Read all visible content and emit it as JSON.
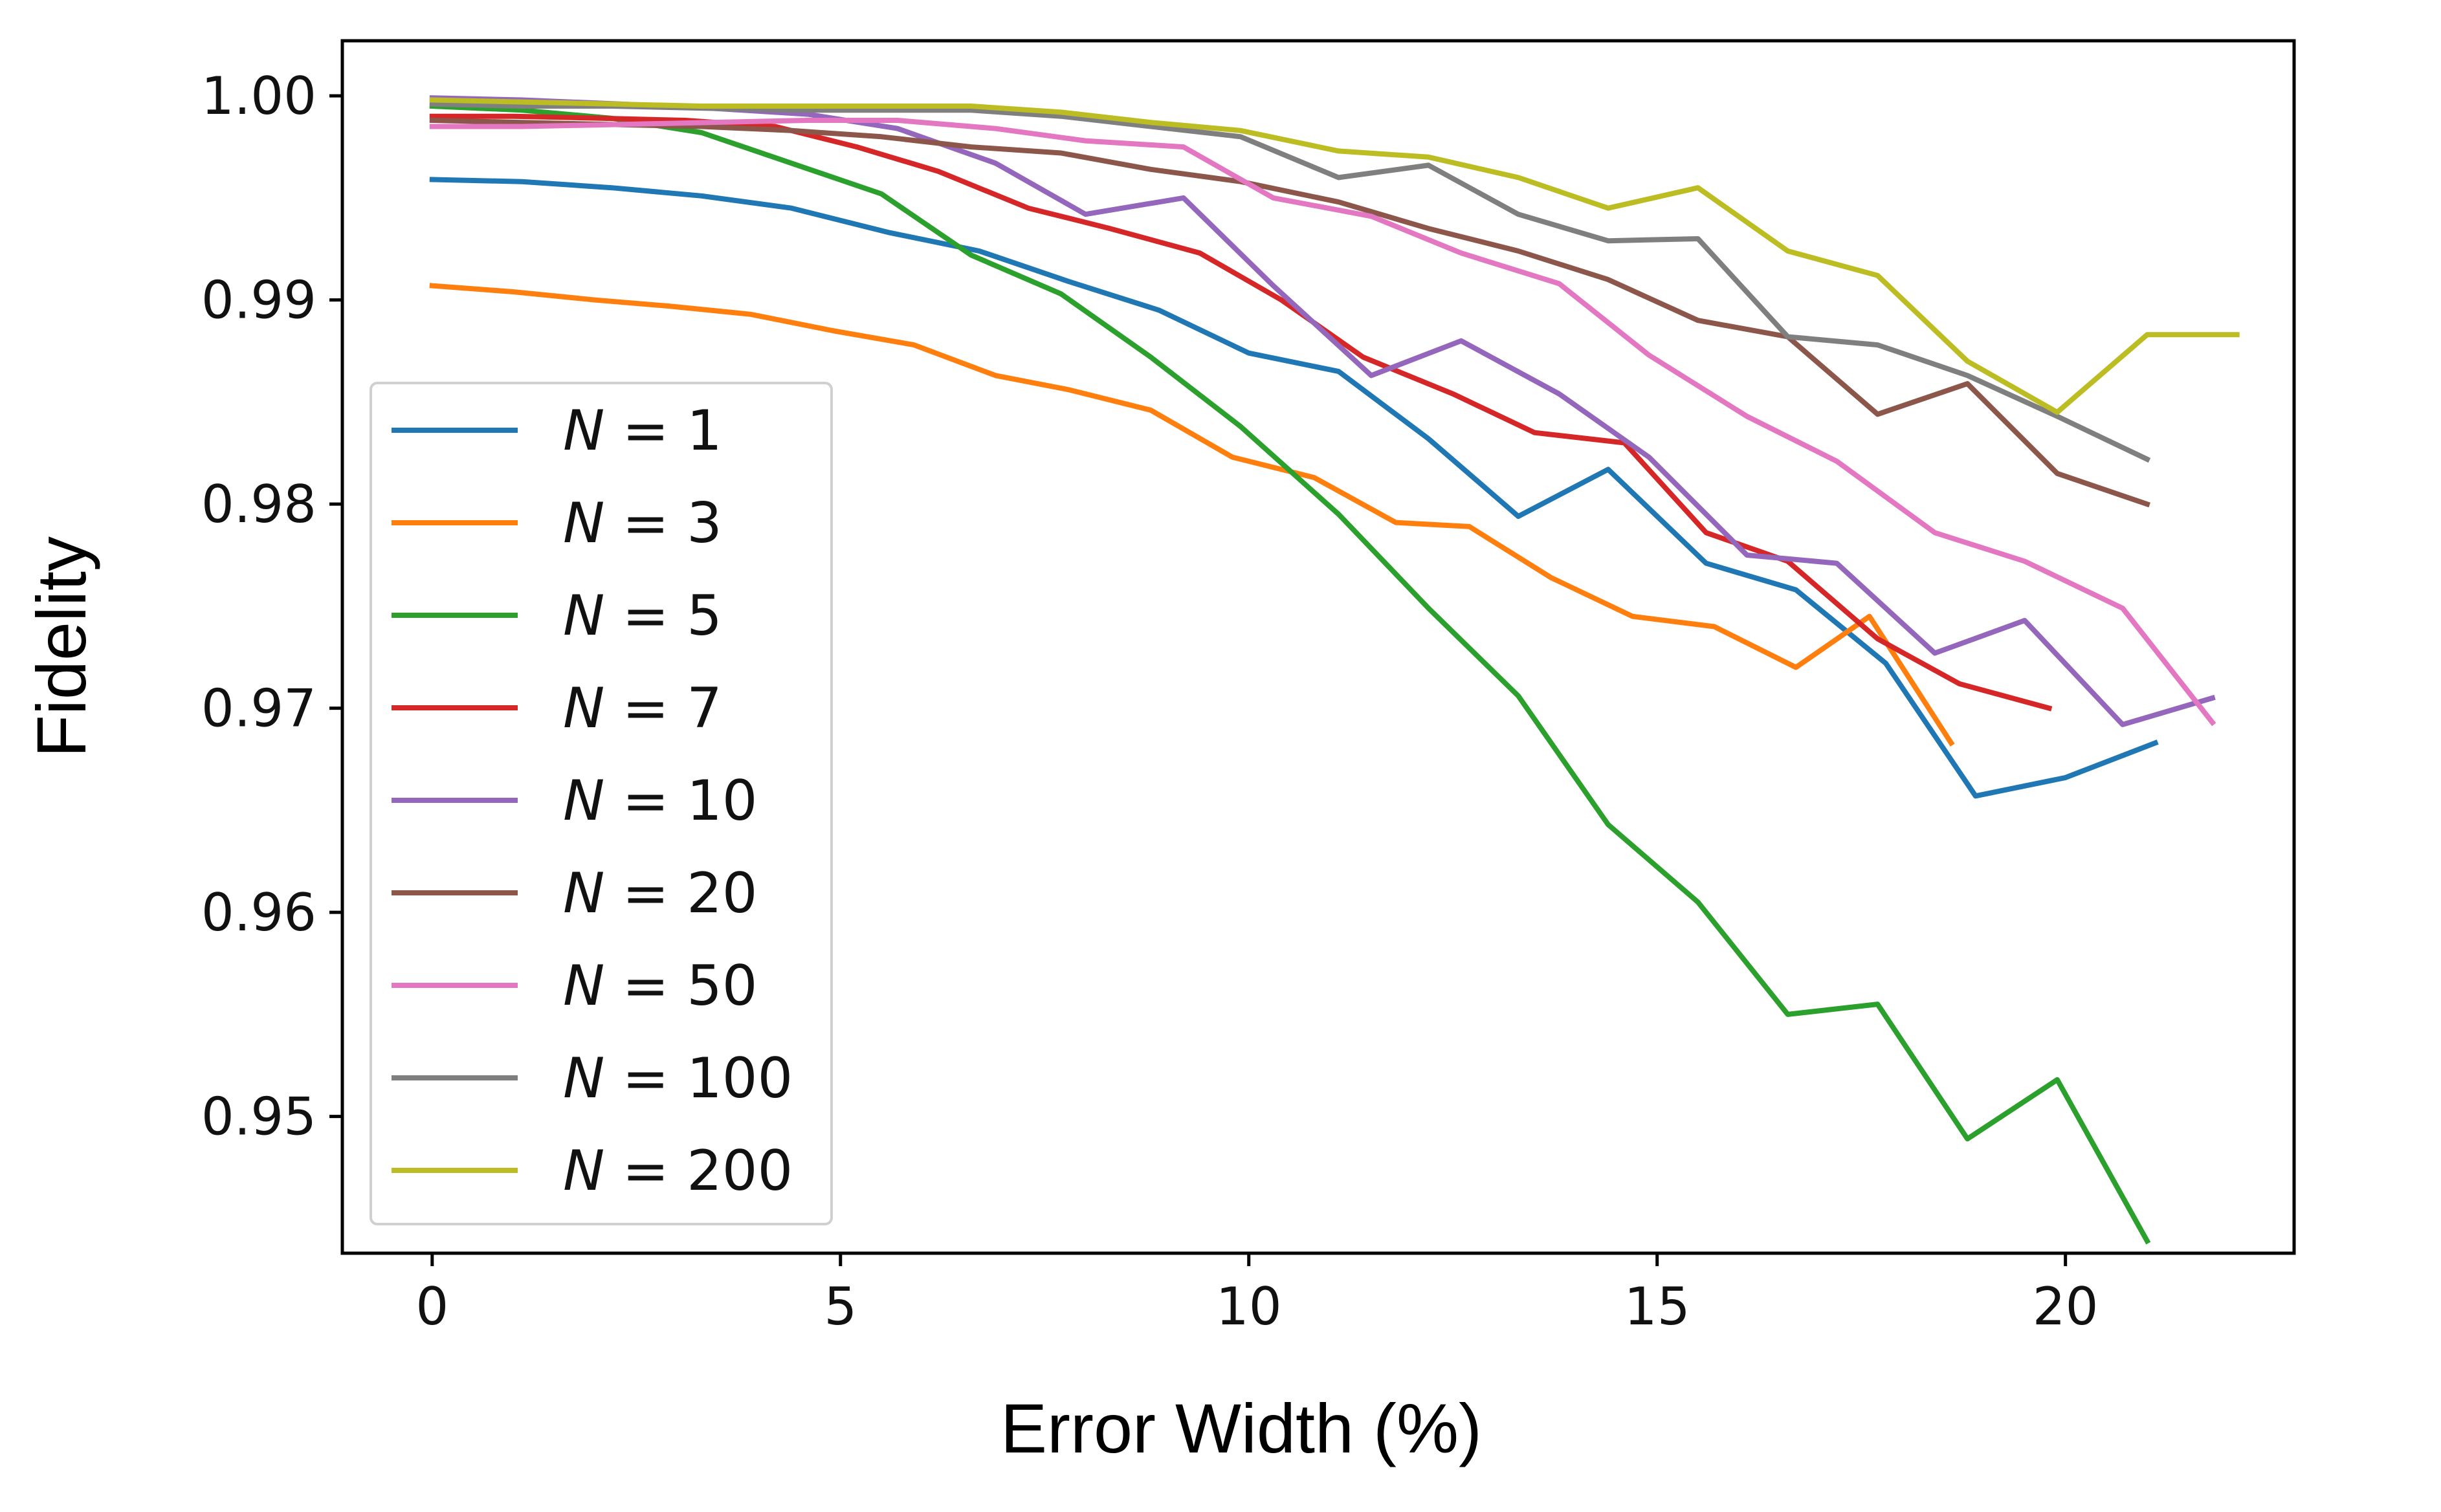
{
  "chart_data": {
    "type": "line",
    "xlabel": "Error Width (%)",
    "ylabel": "Fidelity",
    "xlim": [
      -1.1,
      22.8
    ],
    "ylim": [
      0.9433,
      1.0027
    ],
    "xticks": [
      0,
      5,
      10,
      15,
      20
    ],
    "xtick_labels": [
      "0",
      "5",
      "10",
      "15",
      "20"
    ],
    "yticks": [
      0.95,
      0.96,
      0.97,
      0.98,
      0.99,
      1.0
    ],
    "ytick_labels": [
      "0.95",
      "0.96",
      "0.97",
      "0.98",
      "0.99",
      "1.00"
    ],
    "grid": false,
    "legend_position": "lower-left",
    "legend_symbol": "N",
    "legend_equals": "=",
    "series": [
      {
        "name": "1",
        "color": "#1f77b4",
        "x": [
          0,
          1.1,
          2.2,
          3.3,
          4.4,
          5.6,
          6.7,
          7.8,
          8.9,
          10.0,
          11.1,
          12.2,
          13.3,
          14.4,
          15.6,
          16.7,
          17.8,
          18.9,
          20.0,
          21.1
        ],
        "y": [
          0.9959,
          0.9958,
          0.9955,
          0.9951,
          0.9945,
          0.9933,
          0.9924,
          0.9909,
          0.9895,
          0.9874,
          0.9865,
          0.9832,
          0.9794,
          0.9817,
          0.9771,
          0.9758,
          0.9722,
          0.9657,
          0.9666,
          0.9683
        ]
      },
      {
        "name": "3",
        "color": "#ff7f0e",
        "x": [
          0,
          1.0,
          2.0,
          2.9,
          3.9,
          4.9,
          5.9,
          6.9,
          7.8,
          8.8,
          9.8,
          10.8,
          11.8,
          12.7,
          13.7,
          14.7,
          15.7,
          16.7,
          17.6,
          18.6
        ],
        "y": [
          0.9907,
          0.9904,
          0.99,
          0.9897,
          0.9893,
          0.9885,
          0.9878,
          0.9863,
          0.9856,
          0.9846,
          0.9823,
          0.9813,
          0.9791,
          0.9789,
          0.9764,
          0.9745,
          0.974,
          0.972,
          0.9745,
          0.9683
        ]
      },
      {
        "name": "5",
        "color": "#2ca02c",
        "x": [
          0,
          1.1,
          2.2,
          3.3,
          4.4,
          5.5,
          6.6,
          7.7,
          8.8,
          9.9,
          11.1,
          12.2,
          13.3,
          14.4,
          15.5,
          16.6,
          17.7,
          18.8,
          19.9,
          21.0
        ],
        "y": [
          0.9995,
          0.9993,
          0.9989,
          0.9982,
          0.9967,
          0.9952,
          0.9922,
          0.9903,
          0.9872,
          0.9838,
          0.9795,
          0.9749,
          0.9706,
          0.9643,
          0.9605,
          0.955,
          0.9555,
          0.9489,
          0.9518,
          0.9439
        ]
      },
      {
        "name": "7",
        "color": "#d62728",
        "x": [
          0,
          1.0,
          2.1,
          3.1,
          4.2,
          5.2,
          6.2,
          7.3,
          8.3,
          9.4,
          10.4,
          11.4,
          12.5,
          13.5,
          14.6,
          15.6,
          16.6,
          17.7,
          18.7,
          19.8
        ],
        "y": [
          0.999,
          0.999,
          0.9989,
          0.9988,
          0.9985,
          0.9975,
          0.9963,
          0.9945,
          0.9935,
          0.9923,
          0.99,
          0.9872,
          0.9854,
          0.9835,
          0.983,
          0.9786,
          0.9772,
          0.9734,
          0.9712,
          0.97
        ]
      },
      {
        "name": "10",
        "color": "#9467bd",
        "x": [
          0,
          1.1,
          2.3,
          3.4,
          4.6,
          5.7,
          6.9,
          8.0,
          9.2,
          10.3,
          11.5,
          12.6,
          13.8,
          14.9,
          16.1,
          17.2,
          18.4,
          19.5,
          20.7,
          21.8
        ],
        "y": [
          0.9999,
          0.9998,
          0.9996,
          0.9994,
          0.9991,
          0.9984,
          0.9967,
          0.9942,
          0.995,
          0.9907,
          0.9863,
          0.988,
          0.9854,
          0.9823,
          0.9775,
          0.9771,
          0.9727,
          0.9743,
          0.9692,
          0.9705
        ]
      },
      {
        "name": "20",
        "color": "#8c564b",
        "x": [
          0,
          1.1,
          2.2,
          3.3,
          4.4,
          5.5,
          6.6,
          7.7,
          8.8,
          9.9,
          11.1,
          12.2,
          13.3,
          14.4,
          15.5,
          16.6,
          17.7,
          18.8,
          19.9,
          21.0
        ],
        "y": [
          0.9988,
          0.9987,
          0.9986,
          0.9985,
          0.9983,
          0.998,
          0.9975,
          0.9972,
          0.9964,
          0.9958,
          0.9948,
          0.9935,
          0.9924,
          0.991,
          0.989,
          0.9882,
          0.9844,
          0.9859,
          0.9815,
          0.98
        ]
      },
      {
        "name": "50",
        "color": "#e377c2",
        "x": [
          0,
          1.1,
          2.3,
          3.4,
          4.6,
          5.7,
          6.9,
          8.0,
          9.2,
          10.3,
          11.5,
          12.6,
          13.8,
          14.9,
          16.1,
          17.2,
          18.4,
          19.5,
          20.7,
          21.8
        ],
        "y": [
          0.9985,
          0.9985,
          0.9986,
          0.9987,
          0.9988,
          0.9988,
          0.9984,
          0.9978,
          0.9975,
          0.995,
          0.9941,
          0.9923,
          0.9908,
          0.9873,
          0.9843,
          0.9821,
          0.9786,
          0.9772,
          0.9749,
          0.9693
        ]
      },
      {
        "name": "100",
        "color": "#7f7f7f",
        "x": [
          0,
          1.1,
          2.2,
          3.3,
          4.4,
          5.5,
          6.6,
          7.7,
          8.8,
          9.9,
          11.1,
          12.2,
          13.3,
          14.4,
          15.5,
          16.6,
          17.7,
          18.8,
          19.9,
          21.0
        ],
        "y": [
          0.9996,
          0.9995,
          0.9995,
          0.9994,
          0.9993,
          0.9993,
          0.9993,
          0.999,
          0.9985,
          0.998,
          0.996,
          0.9966,
          0.9942,
          0.9929,
          0.993,
          0.9882,
          0.9878,
          0.9863,
          0.9843,
          0.9822
        ]
      },
      {
        "name": "200",
        "color": "#bcbd22",
        "x": [
          0,
          1.1,
          2.2,
          3.3,
          4.4,
          5.5,
          6.6,
          7.7,
          8.8,
          9.9,
          11.1,
          12.2,
          13.3,
          14.4,
          15.5,
          16.6,
          17.7,
          18.8,
          19.9,
          21.0,
          22.1
        ],
        "y": [
          0.9998,
          0.9997,
          0.9996,
          0.9995,
          0.9995,
          0.9995,
          0.9995,
          0.9992,
          0.9987,
          0.9983,
          0.9973,
          0.997,
          0.996,
          0.9945,
          0.9955,
          0.9924,
          0.9912,
          0.987,
          0.9845,
          0.9883,
          0.9883
        ]
      }
    ]
  }
}
